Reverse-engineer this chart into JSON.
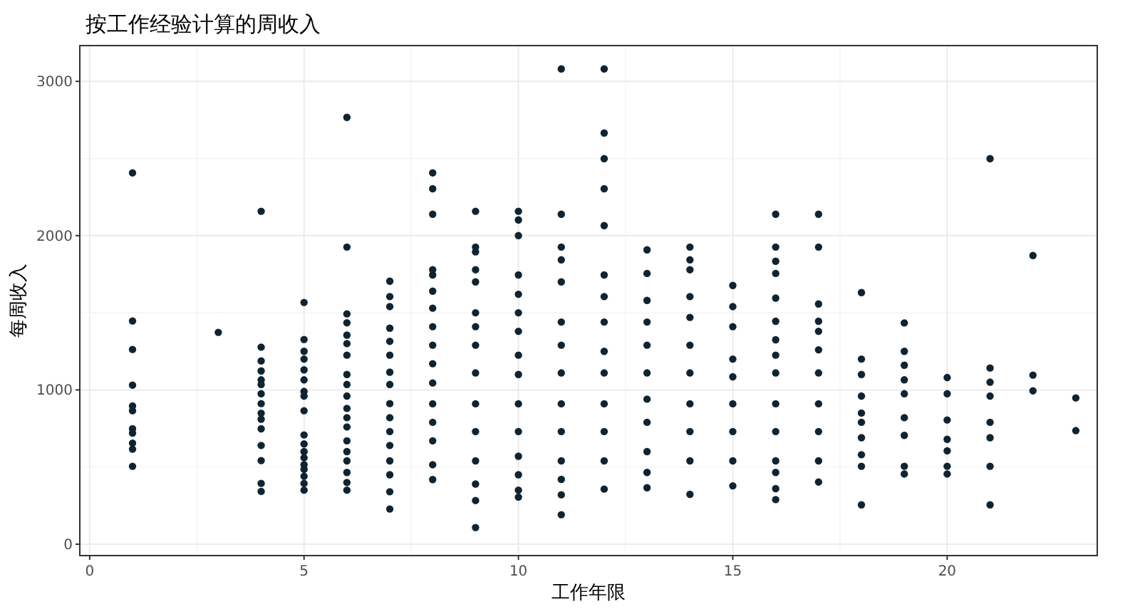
{
  "chart_data": {
    "type": "scatter",
    "title": "按工作经验计算的周收入",
    "xlabel": "工作年限",
    "ylabel": "每周收入",
    "color": "#0f2432",
    "marker": "circle",
    "grid": true,
    "xlim": [
      -0.23,
      23.5
    ],
    "ylim": [
      -74,
      3232
    ],
    "xticks": [
      0,
      5,
      10,
      15,
      20
    ],
    "yticks": [
      0,
      1000,
      2000,
      3000
    ],
    "x": [
      1,
      1,
      1,
      1,
      1,
      1,
      1,
      1,
      1,
      1,
      1,
      3,
      4,
      4,
      4,
      4,
      4,
      4,
      4,
      4,
      4,
      4,
      4,
      4,
      4,
      4,
      4,
      5,
      5,
      5,
      5,
      5,
      5,
      5,
      5,
      5,
      5,
      5,
      5,
      5,
      5,
      5,
      5,
      5,
      5,
      6,
      6,
      6,
      6,
      6,
      6,
      6,
      6,
      6,
      6,
      6,
      6,
      6,
      6,
      6,
      6,
      6,
      6,
      6,
      7,
      7,
      7,
      7,
      7,
      7,
      7,
      7,
      7,
      7,
      7,
      7,
      7,
      7,
      7,
      7,
      8,
      8,
      8,
      8,
      8,
      8,
      8,
      8,
      8,
      8,
      8,
      8,
      8,
      8,
      8,
      8,
      9,
      9,
      9,
      9,
      9,
      9,
      9,
      9,
      9,
      9,
      9,
      9,
      9,
      9,
      9,
      10,
      10,
      10,
      10,
      10,
      10,
      10,
      10,
      10,
      10,
      10,
      10,
      10,
      10,
      10,
      11,
      11,
      11,
      11,
      11,
      11,
      11,
      11,
      11,
      11,
      11,
      11,
      11,
      11,
      12,
      12,
      12,
      12,
      12,
      12,
      12,
      12,
      12,
      12,
      12,
      12,
      12,
      12,
      13,
      13,
      13,
      13,
      13,
      13,
      13,
      13,
      13,
      13,
      13,
      14,
      14,
      14,
      14,
      14,
      14,
      14,
      14,
      14,
      14,
      14,
      15,
      15,
      15,
      15,
      15,
      15,
      15,
      15,
      15,
      16,
      16,
      16,
      16,
      16,
      16,
      16,
      16,
      16,
      16,
      16,
      16,
      16,
      16,
      16,
      17,
      17,
      17,
      17,
      17,
      17,
      17,
      17,
      17,
      17,
      17,
      18,
      18,
      18,
      18,
      18,
      18,
      18,
      18,
      18,
      18,
      19,
      19,
      19,
      19,
      19,
      19,
      19,
      19,
      19,
      20,
      20,
      20,
      20,
      20,
      20,
      20,
      21,
      21,
      21,
      21,
      21,
      21,
      21,
      21,
      22,
      22,
      22,
      23,
      23
    ],
    "values": [
      2407,
      1447,
      1262,
      1031,
      896,
      865,
      748,
      720,
      655,
      616,
      505,
      1373,
      2158,
      1277,
      1188,
      1123,
      1065,
      1035,
      975,
      911,
      849,
      810,
      748,
      640,
      542,
      394,
      342,
      1567,
      1327,
      1250,
      1200,
      1130,
      1065,
      990,
      960,
      865,
      708,
      650,
      600,
      560,
      515,
      485,
      440,
      394,
      350,
      2767,
      1926,
      1493,
      1435,
      1355,
      1300,
      1225,
      1100,
      1035,
      960,
      880,
      820,
      760,
      670,
      600,
      540,
      465,
      400,
      350,
      1705,
      1605,
      1540,
      1400,
      1315,
      1225,
      1115,
      1035,
      911,
      820,
      730,
      640,
      540,
      450,
      340,
      228,
      2407,
      2304,
      2139,
      1779,
      1745,
      1640,
      1530,
      1410,
      1290,
      1170,
      1045,
      910,
      790,
      670,
      515,
      419,
      2158,
      1926,
      1895,
      1779,
      1700,
      1500,
      1410,
      1290,
      1110,
      910,
      730,
      540,
      390,
      283,
      108,
      2158,
      2102,
      2000,
      1745,
      1620,
      1500,
      1380,
      1225,
      1100,
      910,
      730,
      570,
      450,
      350,
      305,
      3081,
      2139,
      1926,
      1843,
      1700,
      1440,
      1290,
      1110,
      910,
      730,
      540,
      420,
      320,
      191,
      3081,
      2665,
      2499,
      2304,
      2065,
      1745,
      1605,
      1440,
      1250,
      1110,
      910,
      730,
      540,
      357,
      1908,
      1755,
      1580,
      1440,
      1290,
      1110,
      940,
      790,
      600,
      465,
      366,
      1926,
      1843,
      1779,
      1605,
      1470,
      1290,
      1110,
      910,
      730,
      540,
      323,
      1677,
      1540,
      1410,
      1200,
      1085,
      910,
      730,
      540,
      378,
      2139,
      1926,
      1834,
      1755,
      1595,
      1445,
      1325,
      1225,
      1110,
      910,
      730,
      540,
      465,
      360,
      289,
      2139,
      1926,
      1557,
      1445,
      1380,
      1260,
      1110,
      910,
      730,
      540,
      403,
      1631,
      1200,
      1100,
      960,
      850,
      790,
      690,
      580,
      505,
      255,
      1434,
      1250,
      1160,
      1065,
      975,
      820,
      705,
      505,
      455,
      1080,
      975,
      805,
      680,
      605,
      505,
      455,
      2499,
      1142,
      1050,
      960,
      790,
      690,
      505,
      255,
      1871,
      1096,
      994,
      948,
      736
    ]
  }
}
